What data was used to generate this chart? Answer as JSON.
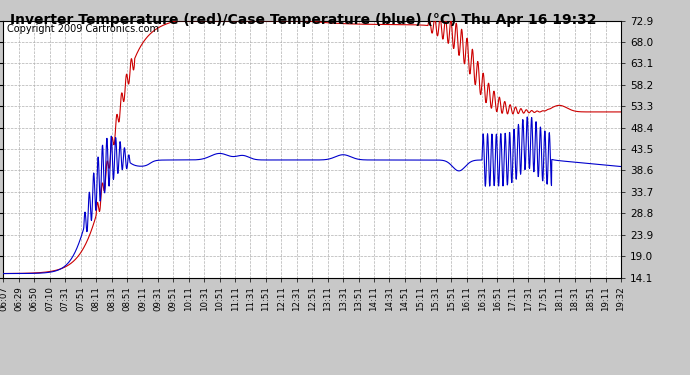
{
  "title": "Inverter Temperature (red)/Case Temperature (blue) (°C) Thu Apr 16 19:32",
  "copyright": "Copyright 2009 Cartronics.com",
  "background_color": "#c8c8c8",
  "plot_bg_color": "#ffffff",
  "grid_color": "#b0b0b0",
  "yticks": [
    14.1,
    19.0,
    23.9,
    28.8,
    33.7,
    38.6,
    43.5,
    48.4,
    53.3,
    58.2,
    63.1,
    68.0,
    72.9
  ],
  "ylim": [
    14.1,
    72.9
  ],
  "xtick_labels": [
    "06:07",
    "06:29",
    "06:50",
    "07:10",
    "07:31",
    "07:51",
    "08:11",
    "08:31",
    "08:51",
    "09:11",
    "09:31",
    "09:51",
    "10:11",
    "10:31",
    "10:51",
    "11:11",
    "11:31",
    "11:51",
    "12:11",
    "12:31",
    "12:51",
    "13:11",
    "13:31",
    "13:51",
    "14:11",
    "14:31",
    "14:51",
    "15:11",
    "15:31",
    "15:51",
    "16:11",
    "16:31",
    "16:51",
    "17:11",
    "17:31",
    "17:51",
    "18:11",
    "18:31",
    "18:51",
    "19:11",
    "19:32"
  ],
  "red_line_color": "#cc0000",
  "blue_line_color": "#0000cc",
  "title_fontsize": 10,
  "copyright_fontsize": 7
}
